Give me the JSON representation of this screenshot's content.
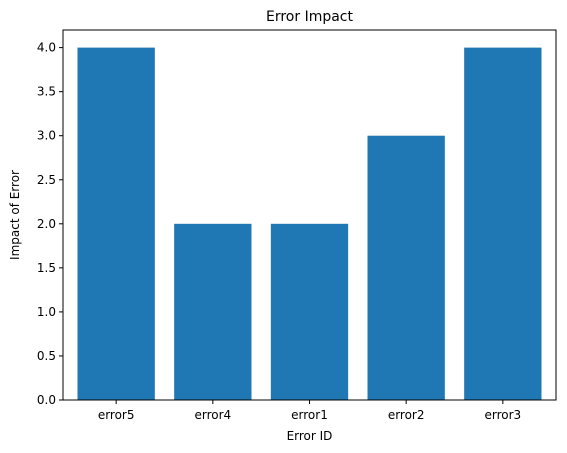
{
  "chart_data": {
    "type": "bar",
    "title": "Error Impact",
    "xlabel": "Error ID",
    "ylabel": "Impact of Error",
    "categories": [
      "error5",
      "error4",
      "error1",
      "error2",
      "error3"
    ],
    "values": [
      4,
      2,
      2,
      3,
      4
    ],
    "ylim": [
      0,
      4.2
    ],
    "yticks": [
      "0.0",
      "0.5",
      "1.0",
      "1.5",
      "2.0",
      "2.5",
      "3.0",
      "3.5",
      "4.0"
    ],
    "grid": false,
    "bar_color": "#1f77b4"
  }
}
